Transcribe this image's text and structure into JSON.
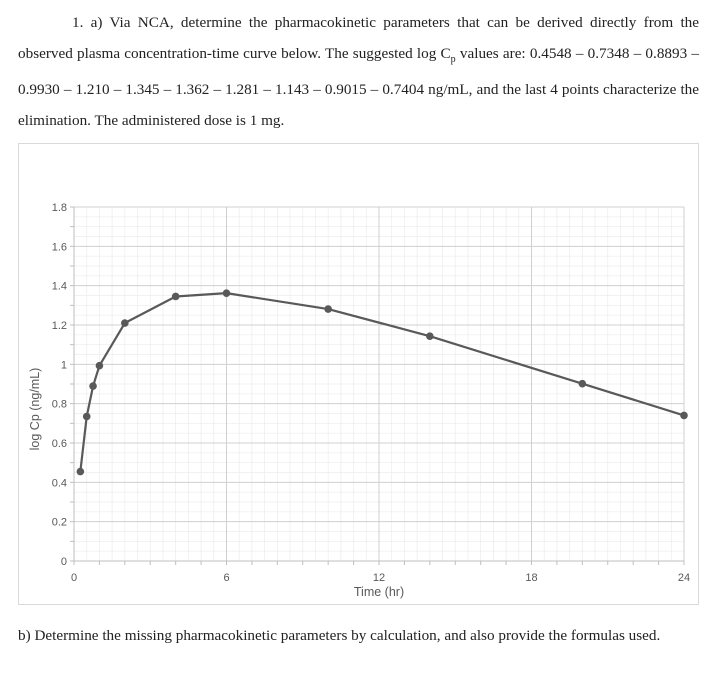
{
  "question": {
    "part_a_prefix": "1. a) Via NCA, determine the pharmacokinetic parameters that can be derived directly from the observed plasma concentration-time curve below. The suggested log C",
    "part_a_subscript": "p",
    "part_a_suffix": " values are: 0.4548 – 0.7348 – 0.8893 – 0.9930 – 1.210 – 1.345 – 1.362 – 1.281 – 1.143 – 0.9015 – 0.7404 ng/mL, and the last 4 points characterize the elimination. The administered dose is 1 mg.",
    "part_b": "b) Determine the missing pharmacokinetic parameters by calculation, and also provide the formulas used."
  },
  "chart_data": {
    "type": "line",
    "title": "",
    "xlabel": "Time (hr)",
    "ylabel": "log Cp (ng/mL)",
    "xlim": [
      0,
      24
    ],
    "ylim": [
      0,
      1.8
    ],
    "xticks": [
      0,
      6,
      12,
      18,
      24
    ],
    "xtick_labels": [
      "0",
      "6",
      "12",
      "18",
      "24"
    ],
    "yticks": [
      0,
      0.2,
      0.4,
      0.6,
      0.8,
      1,
      1.2,
      1.4,
      1.6,
      1.8
    ],
    "ytick_labels": [
      "0",
      "0.2",
      "0.4",
      "0.6",
      "0.8",
      "1",
      "1.2",
      "1.4",
      "1.6",
      "1.8"
    ],
    "grid": true,
    "series": [
      {
        "x": [
          0.25,
          0.5,
          0.75,
          1,
          2,
          4,
          6,
          10,
          14,
          20,
          24
        ],
        "values": [
          0.4548,
          0.7348,
          0.8893,
          0.993,
          1.21,
          1.345,
          1.362,
          1.281,
          1.143,
          0.9015,
          0.7404
        ],
        "color": "#595959"
      }
    ]
  }
}
